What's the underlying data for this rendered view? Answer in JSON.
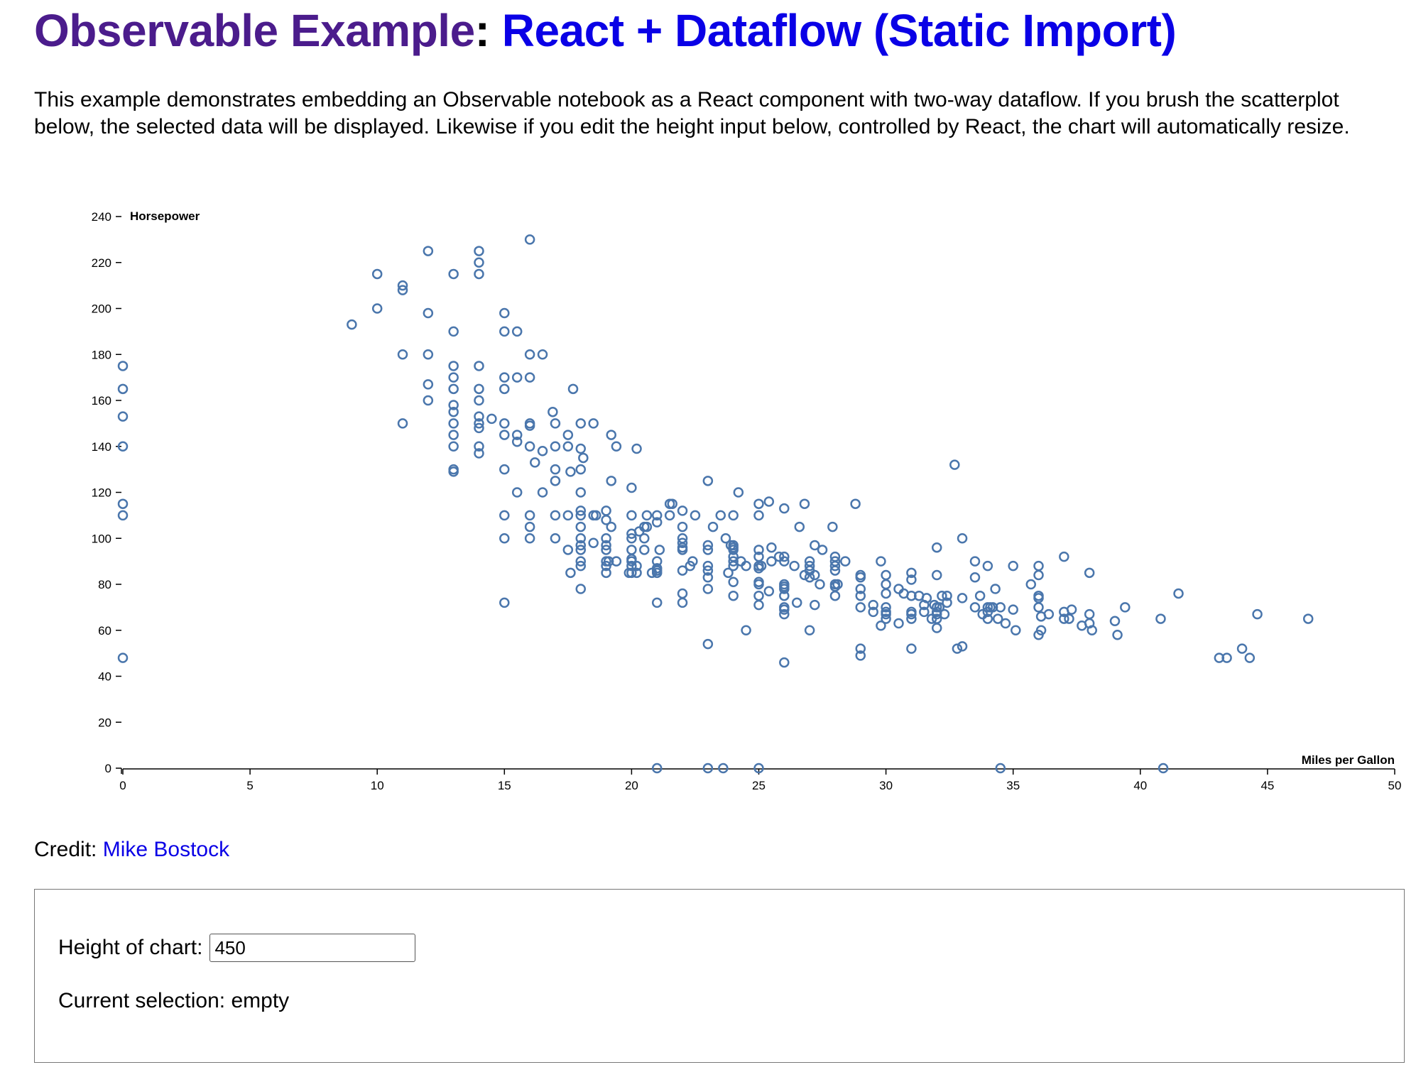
{
  "header": {
    "brand": "Observable Example",
    "separator": ":",
    "title_link": "React + Dataflow (Static Import)"
  },
  "intro": "This example demonstrates embedding an Observable notebook as a React component with two-way dataflow. If you brush the scatterplot below, the selected data will be displayed. Likewise if you edit the height input below, controlled by React, the chart will automatically resize.",
  "credit": {
    "label": "Credit:",
    "link": "Mike Bostock"
  },
  "controls": {
    "height_label": "Height of chart:",
    "height_value": "450",
    "selection_label": "Current selection:",
    "selection_value": "empty"
  },
  "colors": {
    "brand": "#4b1c8c",
    "link": "#0a00e6",
    "point": "#4a76ac"
  },
  "chart_data": {
    "type": "scatter",
    "xlabel": "Miles per Gallon",
    "ylabel": "Horsepower",
    "xlim": [
      0,
      50
    ],
    "ylim": [
      0,
      240
    ],
    "xticks": [
      0,
      5,
      10,
      15,
      20,
      25,
      30,
      35,
      40,
      45,
      50
    ],
    "yticks": [
      0,
      20,
      40,
      60,
      80,
      100,
      120,
      140,
      160,
      180,
      200,
      220,
      240
    ],
    "grid": false,
    "points": [
      [
        0,
        175
      ],
      [
        0,
        165
      ],
      [
        0,
        153
      ],
      [
        0,
        140
      ],
      [
        0,
        115
      ],
      [
        0,
        110
      ],
      [
        0,
        48
      ],
      [
        9,
        193
      ],
      [
        10,
        215
      ],
      [
        10,
        200
      ],
      [
        11,
        210
      ],
      [
        11,
        208
      ],
      [
        11,
        180
      ],
      [
        11,
        150
      ],
      [
        12,
        225
      ],
      [
        12,
        198
      ],
      [
        12,
        180
      ],
      [
        12,
        167
      ],
      [
        12,
        160
      ],
      [
        13,
        215
      ],
      [
        13,
        190
      ],
      [
        13,
        175
      ],
      [
        13,
        170
      ],
      [
        13,
        165
      ],
      [
        13,
        158
      ],
      [
        13,
        155
      ],
      [
        13,
        150
      ],
      [
        13,
        145
      ],
      [
        13,
        140
      ],
      [
        13,
        130
      ],
      [
        13,
        129
      ],
      [
        14,
        225
      ],
      [
        14,
        220
      ],
      [
        14,
        215
      ],
      [
        14,
        175
      ],
      [
        14,
        165
      ],
      [
        14,
        160
      ],
      [
        14,
        153
      ],
      [
        14,
        150
      ],
      [
        14,
        148
      ],
      [
        14,
        140
      ],
      [
        14,
        137
      ],
      [
        14.5,
        152
      ],
      [
        15,
        198
      ],
      [
        15,
        190
      ],
      [
        15,
        170
      ],
      [
        15,
        165
      ],
      [
        15,
        150
      ],
      [
        15,
        145
      ],
      [
        15,
        130
      ],
      [
        15,
        110
      ],
      [
        15,
        100
      ],
      [
        15,
        72
      ],
      [
        15.5,
        190
      ],
      [
        15.5,
        170
      ],
      [
        15.5,
        145
      ],
      [
        15.5,
        142
      ],
      [
        15.5,
        120
      ],
      [
        16,
        230
      ],
      [
        16,
        180
      ],
      [
        16,
        170
      ],
      [
        16,
        150
      ],
      [
        16,
        149
      ],
      [
        16,
        140
      ],
      [
        16,
        110
      ],
      [
        16,
        105
      ],
      [
        16,
        100
      ],
      [
        16.2,
        133
      ],
      [
        16.5,
        180
      ],
      [
        16.5,
        138
      ],
      [
        16.5,
        120
      ],
      [
        16.9,
        155
      ],
      [
        17,
        150
      ],
      [
        17,
        140
      ],
      [
        17,
        130
      ],
      [
        17,
        125
      ],
      [
        17,
        110
      ],
      [
        17,
        100
      ],
      [
        17.5,
        145
      ],
      [
        17.5,
        140
      ],
      [
        17.5,
        110
      ],
      [
        17.5,
        95
      ],
      [
        17.6,
        129
      ],
      [
        17.7,
        165
      ],
      [
        17.6,
        85
      ],
      [
        18,
        150
      ],
      [
        18,
        139
      ],
      [
        18,
        130
      ],
      [
        18,
        120
      ],
      [
        18,
        112
      ],
      [
        18,
        110
      ],
      [
        18,
        105
      ],
      [
        18,
        100
      ],
      [
        18,
        97
      ],
      [
        18,
        95
      ],
      [
        18,
        90
      ],
      [
        18,
        88
      ],
      [
        18,
        78
      ],
      [
        18.1,
        135
      ],
      [
        18.5,
        150
      ],
      [
        18.5,
        110
      ],
      [
        18.5,
        98
      ],
      [
        18.6,
        110
      ],
      [
        19,
        112
      ],
      [
        19,
        108
      ],
      [
        19,
        100
      ],
      [
        19,
        97
      ],
      [
        19,
        95
      ],
      [
        19,
        90
      ],
      [
        19,
        88
      ],
      [
        19,
        85
      ],
      [
        19.1,
        90
      ],
      [
        19.2,
        145
      ],
      [
        19.2,
        125
      ],
      [
        19.2,
        105
      ],
      [
        19.4,
        140
      ],
      [
        19.4,
        90
      ],
      [
        19.9,
        85
      ],
      [
        20,
        122
      ],
      [
        20,
        110
      ],
      [
        20,
        102
      ],
      [
        20,
        100
      ],
      [
        20,
        95
      ],
      [
        20,
        91
      ],
      [
        20,
        90
      ],
      [
        20,
        88
      ],
      [
        20,
        85
      ],
      [
        20.2,
        139
      ],
      [
        20.2,
        88
      ],
      [
        20.2,
        85
      ],
      [
        20.3,
        103
      ],
      [
        20.5,
        105
      ],
      [
        20.5,
        100
      ],
      [
        20.5,
        95
      ],
      [
        20.6,
        105
      ],
      [
        20.6,
        110
      ],
      [
        20.8,
        85
      ],
      [
        21,
        110
      ],
      [
        21,
        107
      ],
      [
        21,
        90
      ],
      [
        21,
        87
      ],
      [
        21,
        86
      ],
      [
        21,
        85
      ],
      [
        21,
        72
      ],
      [
        21,
        0
      ],
      [
        21.1,
        95
      ],
      [
        21.5,
        115
      ],
      [
        21.5,
        110
      ],
      [
        21.6,
        115
      ],
      [
        22,
        112
      ],
      [
        22,
        105
      ],
      [
        22,
        100
      ],
      [
        22,
        98
      ],
      [
        22,
        96
      ],
      [
        22,
        95
      ],
      [
        22,
        86
      ],
      [
        22,
        76
      ],
      [
        22,
        72
      ],
      [
        22.3,
        88
      ],
      [
        22.5,
        110
      ],
      [
        22.4,
        90
      ],
      [
        23,
        125
      ],
      [
        23,
        97
      ],
      [
        23,
        95
      ],
      [
        23,
        88
      ],
      [
        23,
        86
      ],
      [
        23,
        83
      ],
      [
        23,
        78
      ],
      [
        23,
        54
      ],
      [
        23,
        0
      ],
      [
        23.2,
        105
      ],
      [
        23.5,
        110
      ],
      [
        23.6,
        0
      ],
      [
        23.7,
        100
      ],
      [
        23.8,
        85
      ],
      [
        23.9,
        97
      ],
      [
        24,
        110
      ],
      [
        24,
        97
      ],
      [
        24,
        96
      ],
      [
        24,
        95
      ],
      [
        24,
        92
      ],
      [
        24,
        90
      ],
      [
        24,
        88
      ],
      [
        24,
        81
      ],
      [
        24,
        75
      ],
      [
        24.2,
        120
      ],
      [
        24.3,
        90
      ],
      [
        24.5,
        88
      ],
      [
        24.5,
        60
      ],
      [
        25,
        115
      ],
      [
        25,
        110
      ],
      [
        25,
        95
      ],
      [
        25,
        92
      ],
      [
        25,
        88
      ],
      [
        25,
        87
      ],
      [
        25,
        81
      ],
      [
        25,
        80
      ],
      [
        25,
        75
      ],
      [
        25,
        71
      ],
      [
        25,
        0
      ],
      [
        25.1,
        88
      ],
      [
        25.4,
        116
      ],
      [
        25.4,
        77
      ],
      [
        25.5,
        96
      ],
      [
        25.5,
        90
      ],
      [
        25.8,
        92
      ],
      [
        26,
        113
      ],
      [
        26,
        92
      ],
      [
        26,
        90
      ],
      [
        26,
        80
      ],
      [
        26,
        79
      ],
      [
        26,
        78
      ],
      [
        26,
        75
      ],
      [
        26,
        70
      ],
      [
        26,
        69
      ],
      [
        26,
        67
      ],
      [
        26,
        46
      ],
      [
        26.4,
        88
      ],
      [
        26.5,
        72
      ],
      [
        26.6,
        105
      ],
      [
        26.8,
        115
      ],
      [
        26.8,
        84
      ],
      [
        27,
        90
      ],
      [
        27,
        88
      ],
      [
        27,
        86
      ],
      [
        27,
        83
      ],
      [
        27,
        60
      ],
      [
        27.2,
        97
      ],
      [
        27.2,
        84
      ],
      [
        27.2,
        71
      ],
      [
        27.4,
        80
      ],
      [
        27.5,
        95
      ],
      [
        27.9,
        105
      ],
      [
        28,
        92
      ],
      [
        28,
        90
      ],
      [
        28,
        88
      ],
      [
        28,
        86
      ],
      [
        28,
        80
      ],
      [
        28,
        79
      ],
      [
        28,
        75
      ],
      [
        28.1,
        80
      ],
      [
        28.4,
        90
      ],
      [
        28.8,
        115
      ],
      [
        29,
        84
      ],
      [
        29,
        83
      ],
      [
        29,
        78
      ],
      [
        29,
        75
      ],
      [
        29,
        70
      ],
      [
        29,
        52
      ],
      [
        29,
        49
      ],
      [
        29.5,
        71
      ],
      [
        29.5,
        68
      ],
      [
        29.8,
        90
      ],
      [
        29.8,
        62
      ],
      [
        30,
        84
      ],
      [
        30,
        80
      ],
      [
        30,
        76
      ],
      [
        30,
        70
      ],
      [
        30,
        68
      ],
      [
        30,
        67
      ],
      [
        30,
        65
      ],
      [
        30.5,
        63
      ],
      [
        30.5,
        78
      ],
      [
        30.7,
        76
      ],
      [
        31,
        85
      ],
      [
        31,
        82
      ],
      [
        31,
        75
      ],
      [
        31,
        68
      ],
      [
        31,
        67
      ],
      [
        31,
        65
      ],
      [
        31,
        52
      ],
      [
        31.3,
        75
      ],
      [
        31.5,
        71
      ],
      [
        31.5,
        68
      ],
      [
        31.6,
        74
      ],
      [
        31.8,
        65
      ],
      [
        31.9,
        71
      ],
      [
        32,
        96
      ],
      [
        32,
        84
      ],
      [
        32,
        70
      ],
      [
        32,
        68
      ],
      [
        32,
        67
      ],
      [
        32,
        65
      ],
      [
        32,
        61
      ],
      [
        32.1,
        70
      ],
      [
        32.2,
        75
      ],
      [
        32.4,
        75
      ],
      [
        32.4,
        72
      ],
      [
        32.3,
        67
      ],
      [
        32.7,
        132
      ],
      [
        32.8,
        52
      ],
      [
        33,
        100
      ],
      [
        33,
        74
      ],
      [
        33,
        53
      ],
      [
        33.5,
        90
      ],
      [
        33.5,
        83
      ],
      [
        33.5,
        70
      ],
      [
        33.7,
        75
      ],
      [
        33.8,
        67
      ],
      [
        34,
        88
      ],
      [
        34,
        70
      ],
      [
        34,
        68
      ],
      [
        34,
        65
      ],
      [
        34.1,
        70
      ],
      [
        34.2,
        70
      ],
      [
        34.3,
        78
      ],
      [
        34.4,
        65
      ],
      [
        34.5,
        70
      ],
      [
        34.5,
        0
      ],
      [
        34.7,
        63
      ],
      [
        35,
        88
      ],
      [
        35,
        69
      ],
      [
        35.1,
        60
      ],
      [
        35.7,
        80
      ],
      [
        36,
        88
      ],
      [
        36,
        84
      ],
      [
        36,
        75
      ],
      [
        36,
        74
      ],
      [
        36,
        70
      ],
      [
        36,
        58
      ],
      [
        36.1,
        66
      ],
      [
        36.1,
        60
      ],
      [
        36.4,
        67
      ],
      [
        37,
        92
      ],
      [
        37,
        68
      ],
      [
        37,
        65
      ],
      [
        37.2,
        65
      ],
      [
        37.3,
        69
      ],
      [
        37.7,
        62
      ],
      [
        38,
        85
      ],
      [
        38,
        67
      ],
      [
        38,
        63
      ],
      [
        38.1,
        60
      ],
      [
        39,
        64
      ],
      [
        39.1,
        58
      ],
      [
        39.4,
        70
      ],
      [
        40.8,
        65
      ],
      [
        40.9,
        0
      ],
      [
        41.5,
        76
      ],
      [
        43.1,
        48
      ],
      [
        43.4,
        48
      ],
      [
        44,
        52
      ],
      [
        44.3,
        48
      ],
      [
        44.6,
        67
      ],
      [
        46.6,
        65
      ]
    ]
  }
}
